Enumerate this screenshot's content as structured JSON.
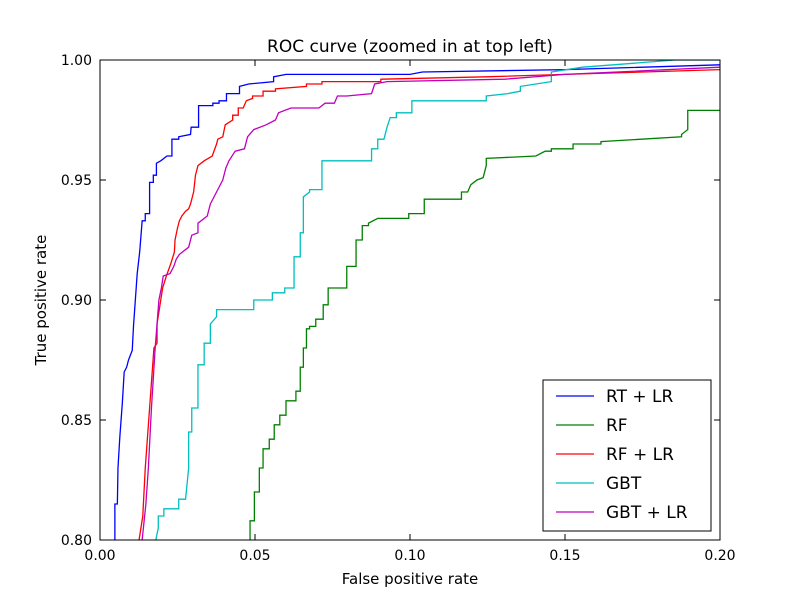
{
  "chart_data": {
    "type": "line",
    "title": "ROC curve (zoomed in at top left)",
    "xlabel": "False positive rate",
    "ylabel": "True positive rate",
    "xlim": [
      0.0,
      0.2
    ],
    "ylim": [
      0.8,
      1.0
    ],
    "x_ticks": [
      0.0,
      0.05,
      0.1,
      0.15,
      0.2
    ],
    "x_tick_labels": [
      "0.00",
      "0.05",
      "0.10",
      "0.15",
      "0.20"
    ],
    "y_ticks": [
      0.8,
      0.85,
      0.9,
      0.95,
      1.0
    ],
    "y_tick_labels": [
      "0.80",
      "0.85",
      "0.90",
      "0.95",
      "1.00"
    ],
    "grid": false,
    "legend_position": "bottom-right",
    "series": [
      {
        "name": "RT + LR",
        "color": "#0000ff",
        "points": [
          [
            0.0048,
            0.8
          ],
          [
            0.0048,
            0.815
          ],
          [
            0.0056,
            0.815
          ],
          [
            0.0058,
            0.83
          ],
          [
            0.0064,
            0.843
          ],
          [
            0.0072,
            0.857
          ],
          [
            0.0078,
            0.87
          ],
          [
            0.0086,
            0.872
          ],
          [
            0.0092,
            0.875
          ],
          [
            0.0104,
            0.879
          ],
          [
            0.0108,
            0.889
          ],
          [
            0.0114,
            0.9
          ],
          [
            0.012,
            0.911
          ],
          [
            0.0128,
            0.92
          ],
          [
            0.0136,
            0.933
          ],
          [
            0.0146,
            0.933
          ],
          [
            0.0146,
            0.936
          ],
          [
            0.016,
            0.936
          ],
          [
            0.016,
            0.949
          ],
          [
            0.0172,
            0.949
          ],
          [
            0.0172,
            0.952
          ],
          [
            0.0182,
            0.952
          ],
          [
            0.0182,
            0.957
          ],
          [
            0.0196,
            0.958
          ],
          [
            0.0216,
            0.96
          ],
          [
            0.0232,
            0.96
          ],
          [
            0.0232,
            0.967
          ],
          [
            0.0254,
            0.967
          ],
          [
            0.0254,
            0.968
          ],
          [
            0.0292,
            0.969
          ],
          [
            0.0294,
            0.972
          ],
          [
            0.0318,
            0.972
          ],
          [
            0.0318,
            0.981
          ],
          [
            0.0364,
            0.981
          ],
          [
            0.0364,
            0.982
          ],
          [
            0.0384,
            0.982
          ],
          [
            0.0384,
            0.983
          ],
          [
            0.0408,
            0.983
          ],
          [
            0.0408,
            0.986
          ],
          [
            0.045,
            0.986
          ],
          [
            0.045,
            0.989
          ],
          [
            0.048,
            0.99
          ],
          [
            0.056,
            0.991
          ],
          [
            0.056,
            0.993
          ],
          [
            0.06,
            0.994
          ],
          [
            0.1,
            0.994
          ],
          [
            0.104,
            0.995
          ],
          [
            0.15,
            0.996
          ],
          [
            0.2,
            0.998
          ]
        ]
      },
      {
        "name": "RF",
        "color": "#008000",
        "points": [
          [
            0.0484,
            0.8
          ],
          [
            0.0484,
            0.808
          ],
          [
            0.0498,
            0.808
          ],
          [
            0.0498,
            0.82
          ],
          [
            0.0514,
            0.82
          ],
          [
            0.0514,
            0.83
          ],
          [
            0.0526,
            0.83
          ],
          [
            0.0526,
            0.838
          ],
          [
            0.0546,
            0.838
          ],
          [
            0.0546,
            0.842
          ],
          [
            0.0562,
            0.842
          ],
          [
            0.0562,
            0.848
          ],
          [
            0.058,
            0.848
          ],
          [
            0.058,
            0.852
          ],
          [
            0.06,
            0.852
          ],
          [
            0.06,
            0.858
          ],
          [
            0.0632,
            0.858
          ],
          [
            0.0632,
            0.862
          ],
          [
            0.0646,
            0.862
          ],
          [
            0.0646,
            0.872
          ],
          [
            0.0656,
            0.872
          ],
          [
            0.0656,
            0.88
          ],
          [
            0.0666,
            0.88
          ],
          [
            0.0666,
            0.888
          ],
          [
            0.0676,
            0.888
          ],
          [
            0.0676,
            0.889
          ],
          [
            0.0696,
            0.889
          ],
          [
            0.0696,
            0.892
          ],
          [
            0.072,
            0.892
          ],
          [
            0.072,
            0.898
          ],
          [
            0.0736,
            0.898
          ],
          [
            0.0736,
            0.905
          ],
          [
            0.0796,
            0.905
          ],
          [
            0.0796,
            0.914
          ],
          [
            0.0826,
            0.914
          ],
          [
            0.0826,
            0.918
          ],
          [
            0.0826,
            0.925
          ],
          [
            0.0846,
            0.925
          ],
          [
            0.0846,
            0.931
          ],
          [
            0.0866,
            0.931
          ],
          [
            0.0866,
            0.932
          ],
          [
            0.0896,
            0.934
          ],
          [
            0.0996,
            0.934
          ],
          [
            0.0996,
            0.936
          ],
          [
            0.1046,
            0.936
          ],
          [
            0.1046,
            0.942
          ],
          [
            0.1166,
            0.942
          ],
          [
            0.1166,
            0.945
          ],
          [
            0.1186,
            0.945
          ],
          [
            0.1196,
            0.948
          ],
          [
            0.1216,
            0.95
          ],
          [
            0.1236,
            0.951
          ],
          [
            0.1246,
            0.956
          ],
          [
            0.1246,
            0.959
          ],
          [
            0.1406,
            0.96
          ],
          [
            0.1436,
            0.962
          ],
          [
            0.1456,
            0.962
          ],
          [
            0.1456,
            0.963
          ],
          [
            0.1526,
            0.963
          ],
          [
            0.1526,
            0.965
          ],
          [
            0.1616,
            0.965
          ],
          [
            0.1616,
            0.966
          ],
          [
            0.1876,
            0.968
          ],
          [
            0.1876,
            0.969
          ],
          [
            0.1896,
            0.971
          ],
          [
            0.1896,
            0.979
          ],
          [
            0.2,
            0.979
          ]
        ]
      },
      {
        "name": "RF + LR",
        "color": "#ff0000",
        "points": [
          [
            0.0126,
            0.8
          ],
          [
            0.0138,
            0.81
          ],
          [
            0.0146,
            0.83
          ],
          [
            0.016,
            0.855
          ],
          [
            0.0174,
            0.88
          ],
          [
            0.0184,
            0.882
          ],
          [
            0.0184,
            0.89
          ],
          [
            0.0196,
            0.9
          ],
          [
            0.0202,
            0.905
          ],
          [
            0.0214,
            0.91
          ],
          [
            0.0228,
            0.915
          ],
          [
            0.024,
            0.92
          ],
          [
            0.0242,
            0.925
          ],
          [
            0.025,
            0.93
          ],
          [
            0.0256,
            0.933
          ],
          [
            0.0264,
            0.935
          ],
          [
            0.0276,
            0.937
          ],
          [
            0.0286,
            0.938
          ],
          [
            0.0292,
            0.94
          ],
          [
            0.0302,
            0.945
          ],
          [
            0.0308,
            0.952
          ],
          [
            0.0316,
            0.956
          ],
          [
            0.0336,
            0.958
          ],
          [
            0.0362,
            0.96
          ],
          [
            0.0376,
            0.965
          ],
          [
            0.038,
            0.967
          ],
          [
            0.0396,
            0.968
          ],
          [
            0.0404,
            0.973
          ],
          [
            0.0428,
            0.975
          ],
          [
            0.0428,
            0.977
          ],
          [
            0.0446,
            0.977
          ],
          [
            0.0446,
            0.98
          ],
          [
            0.0462,
            0.98
          ],
          [
            0.0472,
            0.983
          ],
          [
            0.0492,
            0.984
          ],
          [
            0.0492,
            0.985
          ],
          [
            0.0526,
            0.985
          ],
          [
            0.0526,
            0.987
          ],
          [
            0.0566,
            0.987
          ],
          [
            0.0566,
            0.988
          ],
          [
            0.0666,
            0.989
          ],
          [
            0.0666,
            0.99
          ],
          [
            0.0716,
            0.99
          ],
          [
            0.0716,
            0.991
          ],
          [
            0.0906,
            0.991
          ],
          [
            0.0906,
            0.992
          ],
          [
            0.1246,
            0.993
          ],
          [
            0.15,
            0.994
          ],
          [
            0.2,
            0.996
          ]
        ]
      },
      {
        "name": "GBT",
        "color": "#00bfbf",
        "points": [
          [
            0.018,
            0.8
          ],
          [
            0.0188,
            0.805
          ],
          [
            0.0188,
            0.81
          ],
          [
            0.0206,
            0.81
          ],
          [
            0.0206,
            0.813
          ],
          [
            0.0254,
            0.813
          ],
          [
            0.0254,
            0.817
          ],
          [
            0.0276,
            0.817
          ],
          [
            0.0286,
            0.83
          ],
          [
            0.0286,
            0.845
          ],
          [
            0.0296,
            0.845
          ],
          [
            0.0296,
            0.855
          ],
          [
            0.0316,
            0.855
          ],
          [
            0.0316,
            0.873
          ],
          [
            0.0336,
            0.873
          ],
          [
            0.0336,
            0.882
          ],
          [
            0.0356,
            0.882
          ],
          [
            0.0356,
            0.89
          ],
          [
            0.0376,
            0.893
          ],
          [
            0.0376,
            0.896
          ],
          [
            0.0496,
            0.896
          ],
          [
            0.0496,
            0.9
          ],
          [
            0.0556,
            0.9
          ],
          [
            0.0556,
            0.903
          ],
          [
            0.0596,
            0.903
          ],
          [
            0.0596,
            0.905
          ],
          [
            0.0626,
            0.905
          ],
          [
            0.0626,
            0.918
          ],
          [
            0.0646,
            0.918
          ],
          [
            0.0646,
            0.928
          ],
          [
            0.0656,
            0.928
          ],
          [
            0.0656,
            0.943
          ],
          [
            0.0676,
            0.945
          ],
          [
            0.0676,
            0.946
          ],
          [
            0.0716,
            0.946
          ],
          [
            0.0716,
            0.958
          ],
          [
            0.0876,
            0.958
          ],
          [
            0.0876,
            0.963
          ],
          [
            0.0896,
            0.963
          ],
          [
            0.0896,
            0.967
          ],
          [
            0.0916,
            0.967
          ],
          [
            0.0926,
            0.972
          ],
          [
            0.0936,
            0.976
          ],
          [
            0.0956,
            0.976
          ],
          [
            0.0956,
            0.978
          ],
          [
            0.1006,
            0.978
          ],
          [
            0.1006,
            0.983
          ],
          [
            0.1246,
            0.983
          ],
          [
            0.1246,
            0.985
          ],
          [
            0.1316,
            0.986
          ],
          [
            0.1356,
            0.987
          ],
          [
            0.1356,
            0.989
          ],
          [
            0.1456,
            0.991
          ],
          [
            0.1456,
            0.995
          ],
          [
            0.1556,
            0.997
          ],
          [
            0.1656,
            0.998
          ],
          [
            0.1756,
            0.999
          ],
          [
            0.1856,
            1.0
          ],
          [
            0.2,
            1.0
          ]
        ]
      },
      {
        "name": "GBT + LR",
        "color": "#bf00bf",
        "points": [
          [
            0.0136,
            0.8
          ],
          [
            0.0148,
            0.815
          ],
          [
            0.0156,
            0.83
          ],
          [
            0.0166,
            0.855
          ],
          [
            0.0178,
            0.88
          ],
          [
            0.019,
            0.9
          ],
          [
            0.0198,
            0.905
          ],
          [
            0.0204,
            0.91
          ],
          [
            0.0226,
            0.911
          ],
          [
            0.0238,
            0.914
          ],
          [
            0.0246,
            0.917
          ],
          [
            0.0256,
            0.919
          ],
          [
            0.0286,
            0.922
          ],
          [
            0.0296,
            0.927
          ],
          [
            0.0316,
            0.928
          ],
          [
            0.0316,
            0.932
          ],
          [
            0.0346,
            0.935
          ],
          [
            0.0356,
            0.94
          ],
          [
            0.0376,
            0.945
          ],
          [
            0.0396,
            0.95
          ],
          [
            0.0406,
            0.955
          ],
          [
            0.0416,
            0.958
          ],
          [
            0.0436,
            0.962
          ],
          [
            0.0466,
            0.963
          ],
          [
            0.0476,
            0.968
          ],
          [
            0.0496,
            0.971
          ],
          [
            0.0536,
            0.973
          ],
          [
            0.0566,
            0.975
          ],
          [
            0.0576,
            0.978
          ],
          [
            0.0616,
            0.98
          ],
          [
            0.0706,
            0.98
          ],
          [
            0.0726,
            0.982
          ],
          [
            0.0756,
            0.982
          ],
          [
            0.0766,
            0.985
          ],
          [
            0.0796,
            0.985
          ],
          [
            0.0876,
            0.986
          ],
          [
            0.0886,
            0.99
          ],
          [
            0.0926,
            0.991
          ],
          [
            0.1306,
            0.992
          ],
          [
            0.15,
            0.994
          ],
          [
            0.2,
            0.997
          ]
        ]
      }
    ]
  }
}
